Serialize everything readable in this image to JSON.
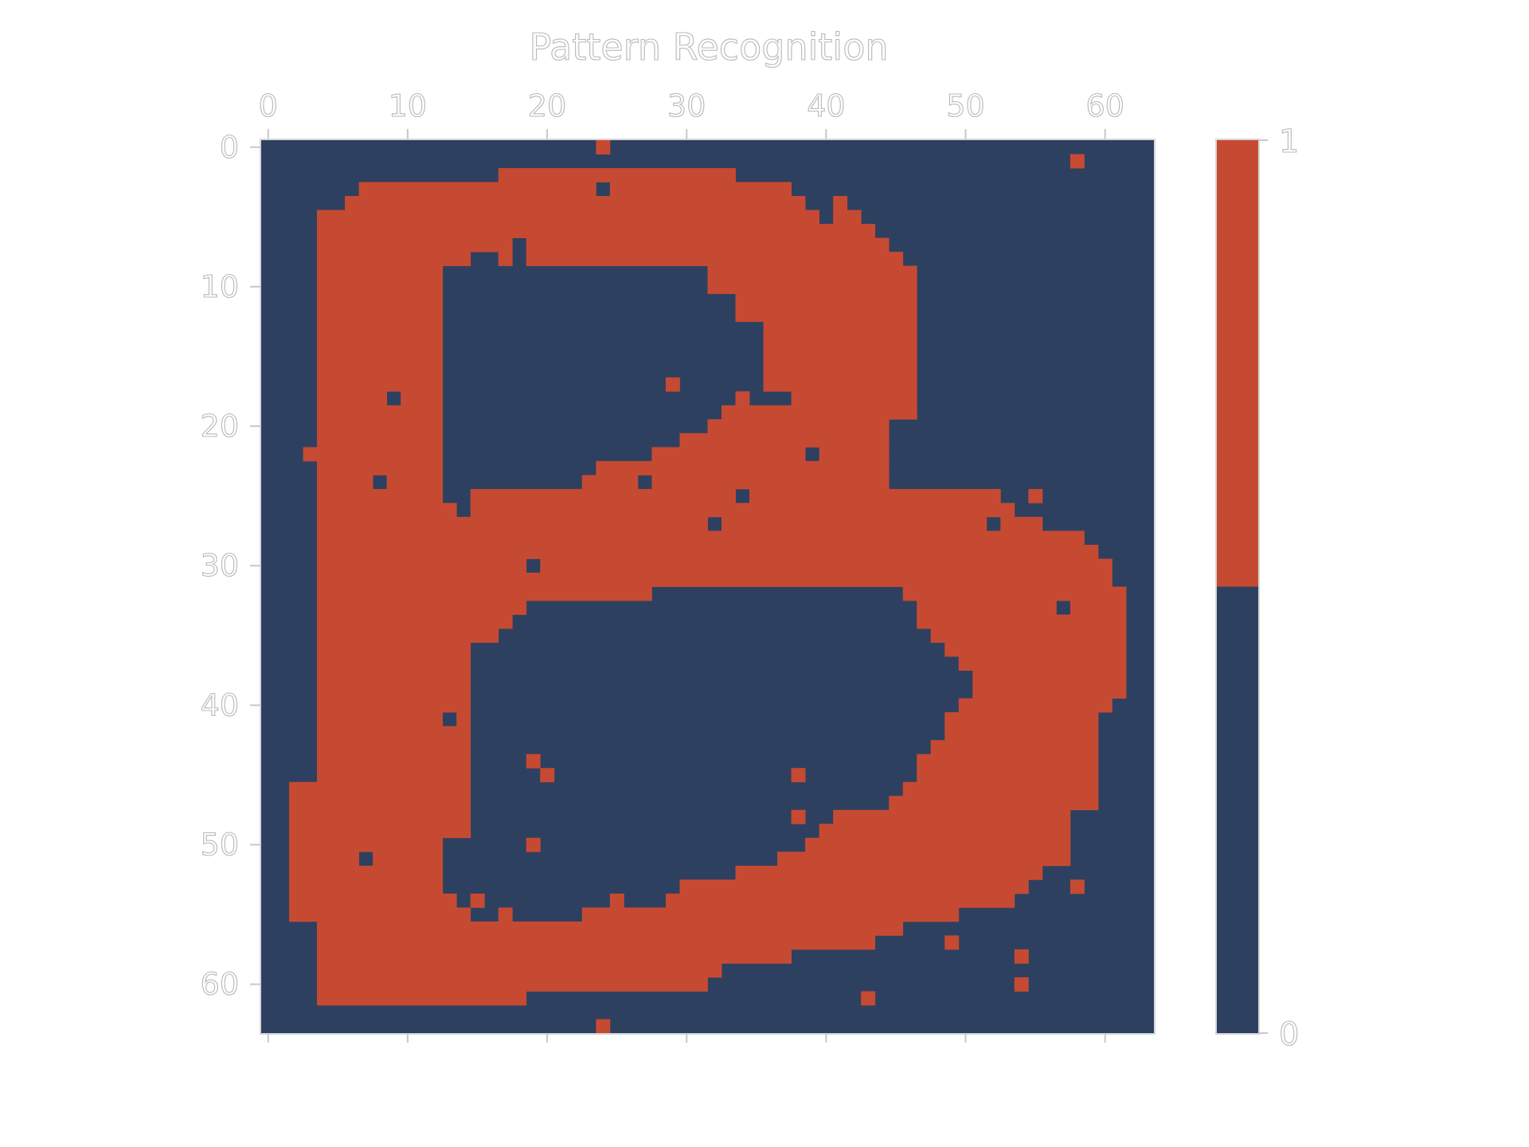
{
  "chart_data": {
    "type": "heatmap",
    "title": "Pattern Recognition",
    "xlabel": "",
    "ylabel": "",
    "x_ticks": [
      0,
      10,
      20,
      30,
      40,
      50,
      60
    ],
    "y_ticks": [
      0,
      10,
      20,
      30,
      40,
      50,
      60
    ],
    "xlim": [
      -0.5,
      63.5
    ],
    "ylim": [
      63.5,
      -0.5
    ],
    "x_axis_position": "top",
    "grid": false,
    "rows": 64,
    "cols": 64,
    "colors": {
      "0": "#2e4060",
      "1": "#c64a32"
    },
    "colorbar": {
      "min": 0,
      "max": 1,
      "tick_labels": [
        "1",
        "0"
      ],
      "position": "right"
    },
    "image_description": "binary 64x64 grid showing the letter B with sparse noise pixels",
    "runs": [
      [
        0,
        24,
        24
      ],
      [
        1,
        58,
        58
      ],
      [
        2,
        17,
        33
      ],
      [
        3,
        7,
        23
      ],
      [
        3,
        25,
        37
      ],
      [
        4,
        6,
        38
      ],
      [
        4,
        41,
        41
      ],
      [
        5,
        4,
        39
      ],
      [
        5,
        41,
        42
      ],
      [
        6,
        4,
        43
      ],
      [
        7,
        4,
        17
      ],
      [
        7,
        19,
        44
      ],
      [
        8,
        4,
        14
      ],
      [
        8,
        17,
        17
      ],
      [
        8,
        19,
        45
      ],
      [
        9,
        4,
        12
      ],
      [
        9,
        32,
        46
      ],
      [
        10,
        4,
        12
      ],
      [
        10,
        32,
        46
      ],
      [
        11,
        4,
        12
      ],
      [
        11,
        34,
        46
      ],
      [
        12,
        4,
        12
      ],
      [
        12,
        34,
        46
      ],
      [
        13,
        4,
        12
      ],
      [
        13,
        36,
        46
      ],
      [
        14,
        4,
        12
      ],
      [
        14,
        36,
        46
      ],
      [
        15,
        4,
        12
      ],
      [
        15,
        36,
        46
      ],
      [
        16,
        4,
        12
      ],
      [
        16,
        36,
        46
      ],
      [
        17,
        4,
        12
      ],
      [
        17,
        29,
        29
      ],
      [
        17,
        36,
        46
      ],
      [
        18,
        4,
        8
      ],
      [
        18,
        10,
        12
      ],
      [
        18,
        34,
        34
      ],
      [
        18,
        38,
        46
      ],
      [
        19,
        4,
        12
      ],
      [
        19,
        33,
        46
      ],
      [
        20,
        4,
        12
      ],
      [
        20,
        32,
        44
      ],
      [
        21,
        4,
        12
      ],
      [
        21,
        30,
        44
      ],
      [
        22,
        3,
        12
      ],
      [
        22,
        28,
        38
      ],
      [
        22,
        40,
        44
      ],
      [
        23,
        4,
        12
      ],
      [
        23,
        24,
        44
      ],
      [
        24,
        4,
        7
      ],
      [
        24,
        9,
        12
      ],
      [
        24,
        23,
        26
      ],
      [
        24,
        28,
        44
      ],
      [
        25,
        4,
        12
      ],
      [
        25,
        15,
        33
      ],
      [
        25,
        35,
        52
      ],
      [
        25,
        55,
        55
      ],
      [
        26,
        4,
        13
      ],
      [
        26,
        15,
        53
      ],
      [
        27,
        4,
        31
      ],
      [
        27,
        33,
        51
      ],
      [
        27,
        53,
        55
      ],
      [
        28,
        4,
        58
      ],
      [
        29,
        4,
        59
      ],
      [
        30,
        4,
        18
      ],
      [
        30,
        20,
        60
      ],
      [
        31,
        4,
        60
      ],
      [
        32,
        4,
        27
      ],
      [
        32,
        46,
        61
      ],
      [
        33,
        4,
        18
      ],
      [
        33,
        47,
        56
      ],
      [
        33,
        58,
        61
      ],
      [
        34,
        4,
        17
      ],
      [
        34,
        47,
        61
      ],
      [
        35,
        4,
        16
      ],
      [
        35,
        48,
        61
      ],
      [
        36,
        4,
        14
      ],
      [
        36,
        49,
        61
      ],
      [
        37,
        4,
        14
      ],
      [
        37,
        50,
        61
      ],
      [
        38,
        4,
        14
      ],
      [
        38,
        51,
        61
      ],
      [
        39,
        4,
        14
      ],
      [
        39,
        51,
        61
      ],
      [
        40,
        4,
        14
      ],
      [
        40,
        50,
        60
      ],
      [
        41,
        4,
        12
      ],
      [
        41,
        14,
        14
      ],
      [
        41,
        49,
        59
      ],
      [
        42,
        4,
        14
      ],
      [
        42,
        49,
        59
      ],
      [
        43,
        4,
        14
      ],
      [
        43,
        48,
        59
      ],
      [
        44,
        4,
        14
      ],
      [
        44,
        19,
        19
      ],
      [
        44,
        47,
        59
      ],
      [
        45,
        4,
        14
      ],
      [
        45,
        20,
        20
      ],
      [
        45,
        38,
        38
      ],
      [
        45,
        47,
        59
      ],
      [
        46,
        2,
        14
      ],
      [
        46,
        46,
        59
      ],
      [
        47,
        2,
        14
      ],
      [
        47,
        45,
        59
      ],
      [
        48,
        2,
        14
      ],
      [
        48,
        38,
        38
      ],
      [
        48,
        41,
        57
      ],
      [
        49,
        2,
        14
      ],
      [
        49,
        40,
        57
      ],
      [
        50,
        2,
        12
      ],
      [
        50,
        19,
        19
      ],
      [
        50,
        39,
        57
      ],
      [
        51,
        2,
        6
      ],
      [
        51,
        8,
        12
      ],
      [
        51,
        37,
        57
      ],
      [
        52,
        2,
        12
      ],
      [
        52,
        34,
        55
      ],
      [
        53,
        2,
        12
      ],
      [
        53,
        30,
        54
      ],
      [
        53,
        58,
        58
      ],
      [
        54,
        2,
        13
      ],
      [
        54,
        15,
        15
      ],
      [
        54,
        25,
        25
      ],
      [
        54,
        29,
        53
      ],
      [
        55,
        2,
        14
      ],
      [
        55,
        17,
        17
      ],
      [
        55,
        23,
        49
      ],
      [
        56,
        4,
        45
      ],
      [
        57,
        4,
        43
      ],
      [
        57,
        49,
        49
      ],
      [
        58,
        4,
        37
      ],
      [
        58,
        54,
        54
      ],
      [
        59,
        4,
        32
      ],
      [
        60,
        4,
        31
      ],
      [
        60,
        54,
        54
      ],
      [
        61,
        4,
        18
      ],
      [
        61,
        43,
        43
      ],
      [
        63,
        24,
        24
      ]
    ]
  }
}
